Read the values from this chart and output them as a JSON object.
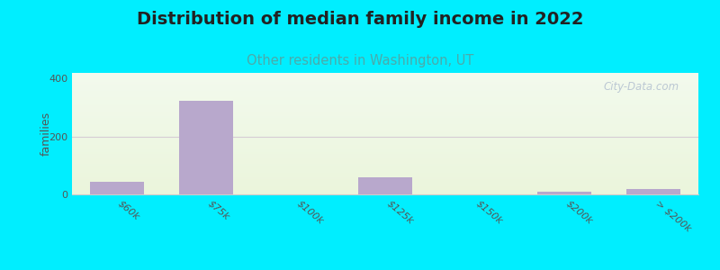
{
  "title": "Distribution of median family income in 2022",
  "subtitle": "Other residents in Washington, UT",
  "ylabel": "families",
  "categories": [
    "$60k",
    "$75k",
    "$100k",
    "$125k",
    "$150k",
    "$200k",
    "> $200k"
  ],
  "values": [
    45,
    325,
    0,
    60,
    0,
    8,
    18
  ],
  "bar_color": "#b8a8cc",
  "ylim": [
    0,
    420
  ],
  "yticks": [
    0,
    200,
    400
  ],
  "background_outer": "#00eeff",
  "title_fontsize": 14,
  "subtitle_fontsize": 10.5,
  "subtitle_color": "#4aabab",
  "watermark_text": "City-Data.com",
  "bar_width": 0.6,
  "grid_color": "#ccbbcc",
  "spine_color": "#cccccc"
}
